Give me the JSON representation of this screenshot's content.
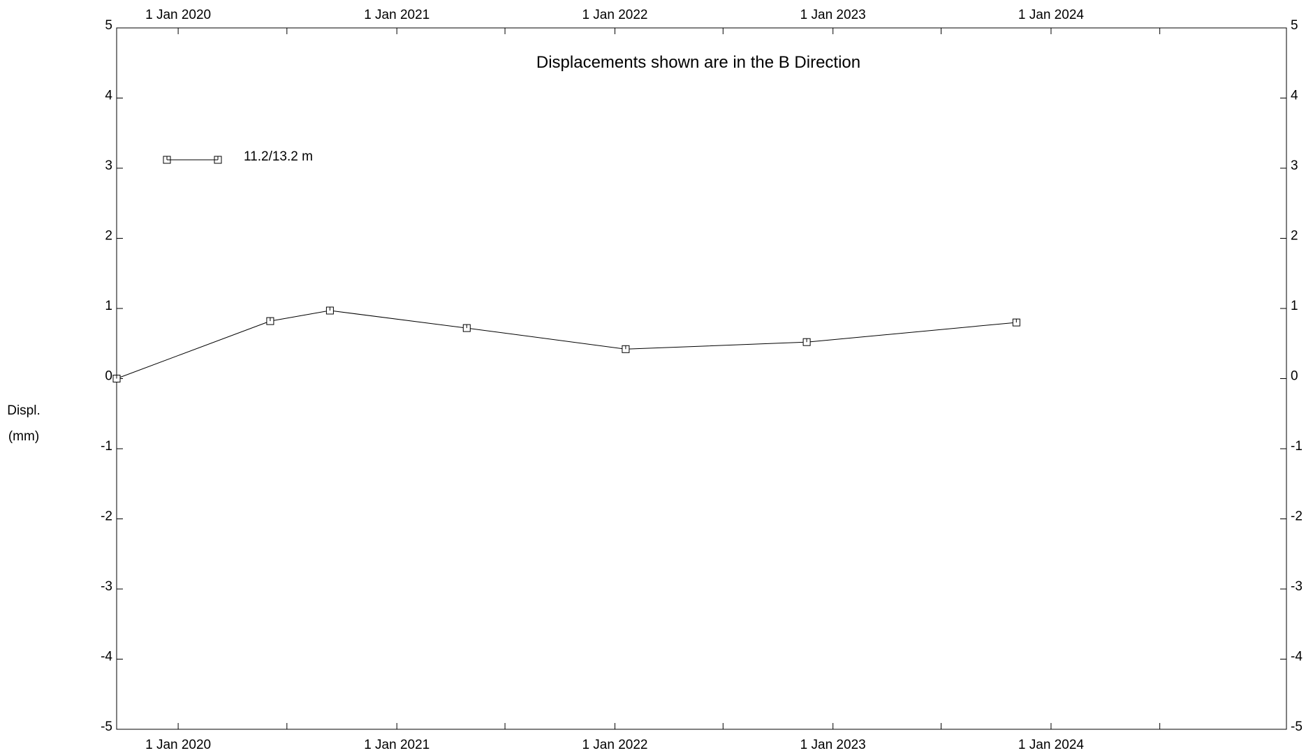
{
  "chart_data": {
    "type": "line",
    "title": "Displacements shown are in the  B Direction",
    "ylabel": [
      "Displ.",
      "(mm)"
    ],
    "xlabel": "",
    "ylim": [
      -5,
      5
    ],
    "yticks": [
      5,
      4,
      3,
      2,
      1,
      0,
      -1,
      -2,
      -3,
      -4,
      -5
    ],
    "xlim": [
      "2019-09-20",
      "2025-01-29"
    ],
    "xticks": [
      {
        "date": "2020-01-01",
        "label": "1 Jan 2020"
      },
      {
        "date": "2021-01-01",
        "label": "1 Jan 2021"
      },
      {
        "date": "2022-01-01",
        "label": "1 Jan 2022"
      },
      {
        "date": "2023-01-01",
        "label": "1 Jan 2023"
      },
      {
        "date": "2024-01-01",
        "label": "1 Jan 2024"
      }
    ],
    "minor_xticks": [
      "2020-07-01",
      "2021-07-01",
      "2022-07-01",
      "2023-07-01",
      "2024-07-01"
    ],
    "grid": false,
    "legend_position": "top-left",
    "series": [
      {
        "name": "11.2/13.2 m",
        "marker": "square",
        "color": "#000000",
        "x": [
          "2019-09-20",
          "2020-06-03",
          "2020-09-11",
          "2021-04-28",
          "2022-01-19",
          "2022-11-18",
          "2023-11-04"
        ],
        "y": [
          0.0,
          0.82,
          0.97,
          0.72,
          0.42,
          0.52,
          0.8
        ]
      }
    ]
  }
}
